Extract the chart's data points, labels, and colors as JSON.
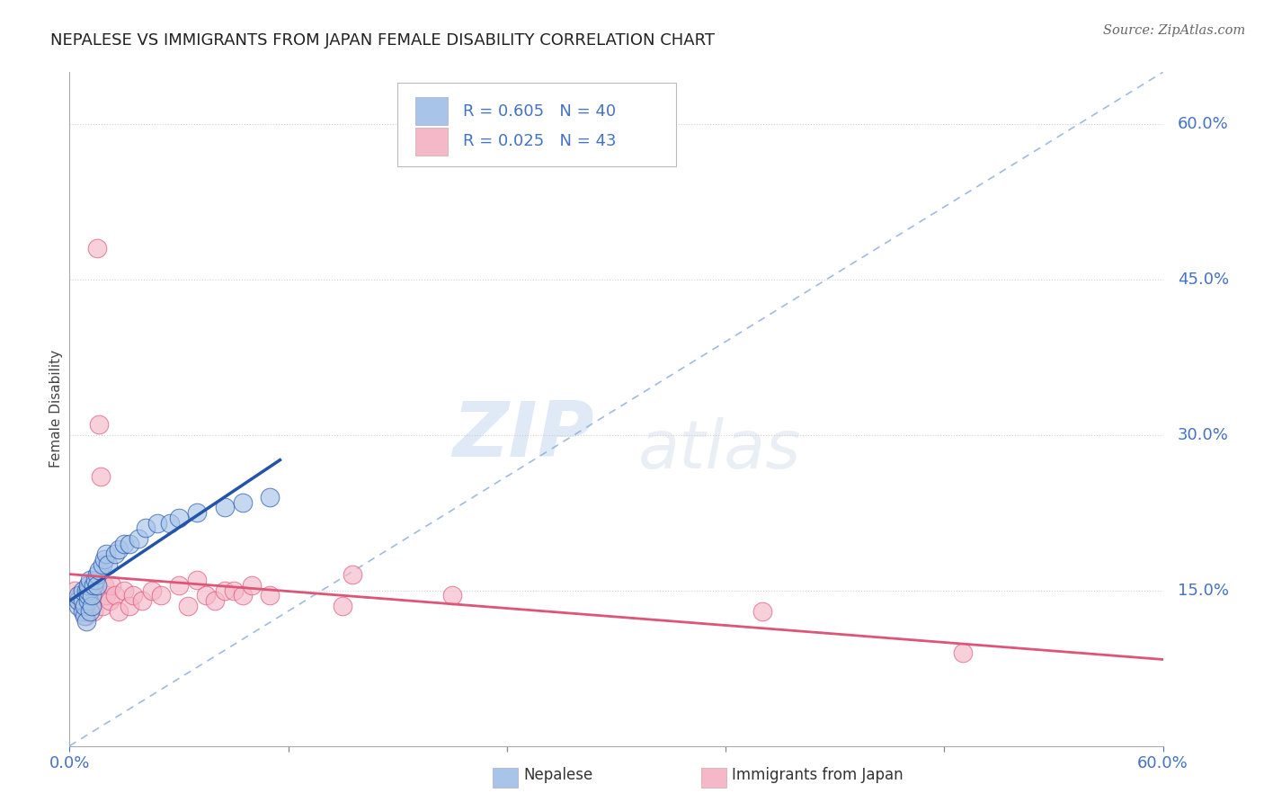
{
  "title": "NEPALESE VS IMMIGRANTS FROM JAPAN FEMALE DISABILITY CORRELATION CHART",
  "source": "Source: ZipAtlas.com",
  "ylabel": "Female Disability",
  "xlim": [
    0.0,
    0.6
  ],
  "ylim": [
    0.0,
    0.65
  ],
  "yticks": [
    0.15,
    0.3,
    0.45,
    0.6
  ],
  "ytick_labels": [
    "15.0%",
    "30.0%",
    "45.0%",
    "60.0%"
  ],
  "legend_R1": "R = 0.605",
  "legend_N1": "N = 40",
  "legend_R2": "R = 0.025",
  "legend_N2": "N = 43",
  "color_blue": "#a8c4e8",
  "color_pink": "#f5b8c8",
  "color_blue_line": "#2255aa",
  "color_pink_line": "#dd5577",
  "color_blue_dashed": "#88aad8",
  "color_text_blue": "#4472c4",
  "nepalese_x": [
    0.005,
    0.005,
    0.005,
    0.007,
    0.007,
    0.007,
    0.008,
    0.008,
    0.009,
    0.009,
    0.01,
    0.01,
    0.01,
    0.01,
    0.011,
    0.011,
    0.012,
    0.012,
    0.013,
    0.014,
    0.015,
    0.015,
    0.016,
    0.018,
    0.019,
    0.02,
    0.021,
    0.025,
    0.027,
    0.03,
    0.033,
    0.038,
    0.042,
    0.048,
    0.055,
    0.06,
    0.07,
    0.085,
    0.095,
    0.11
  ],
  "nepalese_y": [
    0.135,
    0.14,
    0.145,
    0.13,
    0.14,
    0.15,
    0.125,
    0.135,
    0.12,
    0.15,
    0.14,
    0.145,
    0.15,
    0.155,
    0.13,
    0.16,
    0.135,
    0.145,
    0.155,
    0.16,
    0.165,
    0.155,
    0.17,
    0.175,
    0.18,
    0.185,
    0.175,
    0.185,
    0.19,
    0.195,
    0.195,
    0.2,
    0.21,
    0.215,
    0.215,
    0.22,
    0.225,
    0.23,
    0.235,
    0.24
  ],
  "japan_x": [
    0.003,
    0.005,
    0.006,
    0.007,
    0.008,
    0.009,
    0.01,
    0.01,
    0.011,
    0.012,
    0.013,
    0.014,
    0.015,
    0.016,
    0.017,
    0.018,
    0.019,
    0.02,
    0.022,
    0.023,
    0.025,
    0.027,
    0.03,
    0.033,
    0.035,
    0.04,
    0.045,
    0.05,
    0.06,
    0.065,
    0.07,
    0.075,
    0.08,
    0.085,
    0.09,
    0.095,
    0.1,
    0.11,
    0.15,
    0.155,
    0.21,
    0.38,
    0.49
  ],
  "japan_y": [
    0.15,
    0.14,
    0.145,
    0.135,
    0.13,
    0.125,
    0.155,
    0.145,
    0.14,
    0.135,
    0.13,
    0.15,
    0.48,
    0.31,
    0.26,
    0.135,
    0.155,
    0.145,
    0.14,
    0.155,
    0.145,
    0.13,
    0.15,
    0.135,
    0.145,
    0.14,
    0.15,
    0.145,
    0.155,
    0.135,
    0.16,
    0.145,
    0.14,
    0.15,
    0.15,
    0.145,
    0.155,
    0.145,
    0.135,
    0.165,
    0.145,
    0.13,
    0.09
  ],
  "watermark_zip": "ZIP",
  "watermark_atlas": "atlas",
  "background_color": "#ffffff",
  "grid_color": "#cccccc"
}
